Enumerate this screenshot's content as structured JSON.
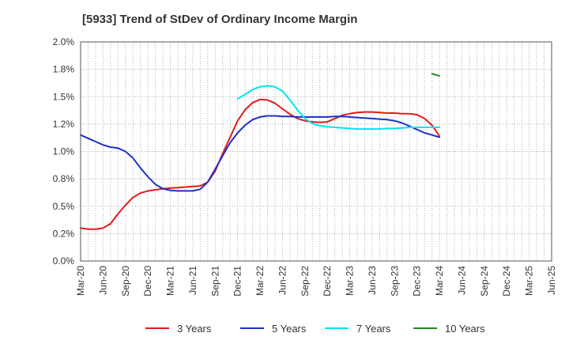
{
  "chart_data": {
    "type": "line",
    "title": "[5933]  Trend of StDev of Ordinary Income Margin",
    "x_tick_labels": [
      "Mar-20",
      "Jun-20",
      "Sep-20",
      "Dec-20",
      "Mar-21",
      "Jun-21",
      "Sep-21",
      "Dec-21",
      "Mar-22",
      "Jun-22",
      "Sep-22",
      "Dec-22",
      "Mar-23",
      "Jun-23",
      "Sep-23",
      "Dec-23",
      "Mar-24",
      "Jun-24",
      "Sep-24",
      "Dec-24",
      "Mar-25",
      "Jun-25"
    ],
    "y_tick_labels": [
      "0.0%",
      "0.2%",
      "0.5%",
      "0.8%",
      "1.0%",
      "1.2%",
      "1.5%",
      "1.8%",
      "2.0%"
    ],
    "ylim": [
      0,
      2.0
    ],
    "y_unit": "%",
    "grid": true,
    "legend_position": "bottom",
    "series": [
      {
        "name": "3 Years",
        "color": "#e31a1c",
        "start_month": 0,
        "values": [
          0.3,
          0.29,
          0.29,
          0.3,
          0.34,
          0.43,
          0.51,
          0.58,
          0.62,
          0.64,
          0.65,
          0.66,
          0.665,
          0.67,
          0.675,
          0.68,
          0.685,
          0.72,
          0.82,
          0.98,
          1.13,
          1.28,
          1.38,
          1.445,
          1.475,
          1.47,
          1.44,
          1.39,
          1.34,
          1.3,
          1.28,
          1.27,
          1.265,
          1.27,
          1.3,
          1.33,
          1.345,
          1.355,
          1.36,
          1.36,
          1.355,
          1.35,
          1.35,
          1.345,
          1.345,
          1.335,
          1.3,
          1.24,
          1.14
        ]
      },
      {
        "name": "5 Years",
        "color": "#1f30c8",
        "start_month": 0,
        "values": [
          1.15,
          1.12,
          1.09,
          1.06,
          1.04,
          1.03,
          1.0,
          0.94,
          0.85,
          0.77,
          0.7,
          0.66,
          0.645,
          0.64,
          0.64,
          0.64,
          0.655,
          0.72,
          0.84,
          0.96,
          1.08,
          1.17,
          1.24,
          1.29,
          1.315,
          1.325,
          1.325,
          1.32,
          1.32,
          1.315,
          1.315,
          1.315,
          1.315,
          1.315,
          1.32,
          1.32,
          1.315,
          1.31,
          1.305,
          1.3,
          1.295,
          1.29,
          1.28,
          1.26,
          1.23,
          1.2,
          1.17,
          1.15,
          1.13
        ]
      },
      {
        "name": "7 Years",
        "color": "#00e5ee",
        "start_month": 21,
        "values": [
          1.48,
          1.52,
          1.565,
          1.59,
          1.6,
          1.59,
          1.55,
          1.47,
          1.38,
          1.3,
          1.255,
          1.235,
          1.225,
          1.22,
          1.215,
          1.21,
          1.205,
          1.205,
          1.205,
          1.205,
          1.21,
          1.21,
          1.215,
          1.22,
          1.22,
          1.22,
          1.22,
          1.22
        ]
      },
      {
        "name": "10 Years",
        "color": "#1e8c1e",
        "start_month": 47,
        "values": [
          1.71,
          1.69
        ]
      }
    ]
  }
}
